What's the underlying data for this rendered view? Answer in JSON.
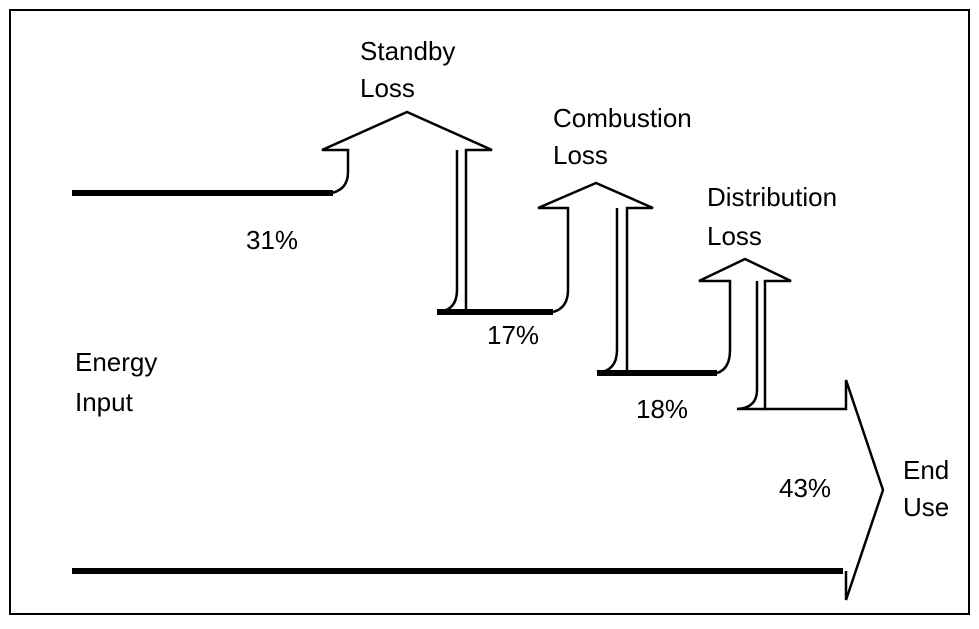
{
  "diagram": {
    "labels": {
      "standby_line1": "Standby",
      "standby_line2": "Loss",
      "combustion_line1": "Combustion",
      "combustion_line2": "Loss",
      "distribution_line1": "Distribution",
      "distribution_line2": "Loss",
      "energy_input_line1": "Energy",
      "energy_input_line2": "Input",
      "end_use_line1": "End",
      "end_use_line2": "Use"
    },
    "percentages": {
      "standby": "31%",
      "combustion": "17%",
      "distribution": "18%",
      "end_use": "43%"
    },
    "colors": {
      "stroke": "#000000",
      "background": "#ffffff"
    }
  }
}
